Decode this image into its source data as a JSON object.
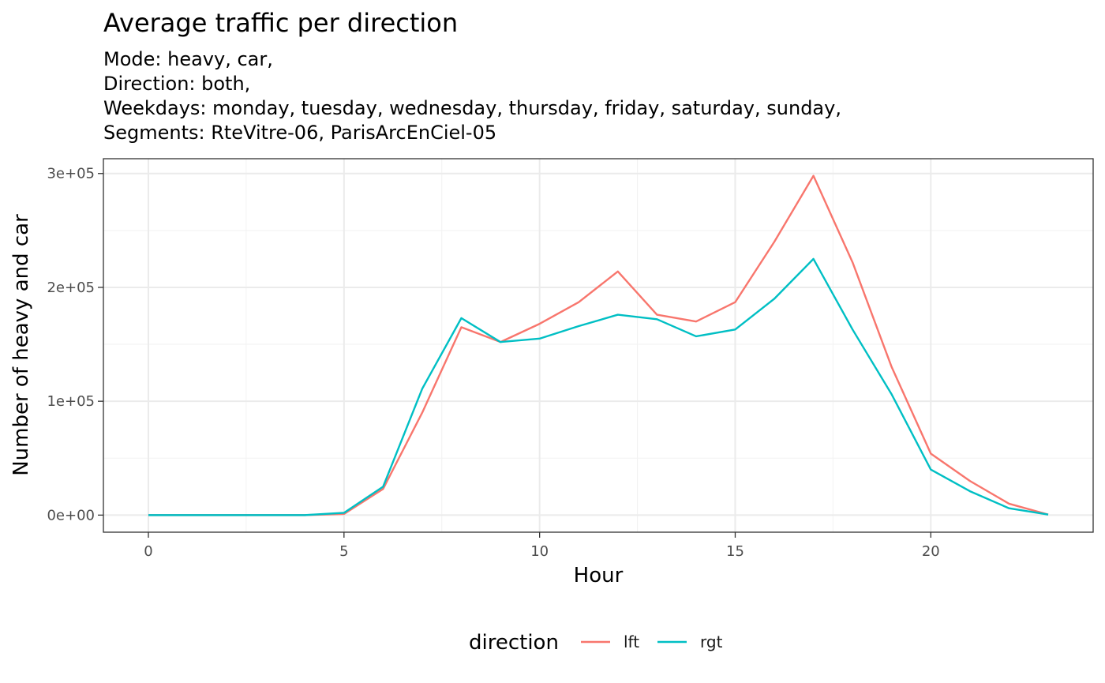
{
  "chart_data": {
    "type": "line",
    "title": "Average traffic per direction",
    "subtitle_lines": [
      "Mode: heavy, car,",
      "Direction: both,",
      "Weekdays: monday, tuesday, wednesday, thursday, friday, saturday, sunday,",
      "Segments: RteVitre-06, ParisArcEnCiel-05"
    ],
    "xlabel": "Hour",
    "ylabel": "Number of heavy and car",
    "xlim": [
      -1.15,
      24.15
    ],
    "ylim": [
      -15000,
      313000
    ],
    "x_ticks": [
      0,
      5,
      10,
      15,
      20
    ],
    "x_tick_labels": [
      "0",
      "5",
      "10",
      "15",
      "20"
    ],
    "y_ticks": [
      0,
      100000,
      200000,
      300000
    ],
    "y_tick_labels": [
      "0e+00",
      "1e+05",
      "2e+05",
      "3e+05"
    ],
    "grid": true,
    "legend_position": "bottom",
    "legend_title": "direction",
    "x": [
      0,
      1,
      2,
      3,
      4,
      5,
      6,
      7,
      8,
      9,
      10,
      11,
      12,
      13,
      14,
      15,
      16,
      17,
      18,
      19,
      20,
      21,
      22,
      23
    ],
    "series": [
      {
        "name": "lft",
        "color": "#F8766D",
        "values": [
          0,
          0,
          0,
          0,
          0,
          1000,
          23000,
          90000,
          165000,
          152000,
          168000,
          187000,
          214000,
          176000,
          170000,
          187000,
          240000,
          298000,
          222000,
          130000,
          54000,
          30000,
          10000,
          500
        ]
      },
      {
        "name": "rgt",
        "color": "#00BFC4",
        "values": [
          0,
          0,
          0,
          0,
          0,
          2000,
          25000,
          111000,
          173000,
          152000,
          155000,
          166000,
          176000,
          172000,
          157000,
          163000,
          190000,
          225000,
          163000,
          106000,
          40000,
          21000,
          6000,
          500
        ]
      }
    ]
  }
}
